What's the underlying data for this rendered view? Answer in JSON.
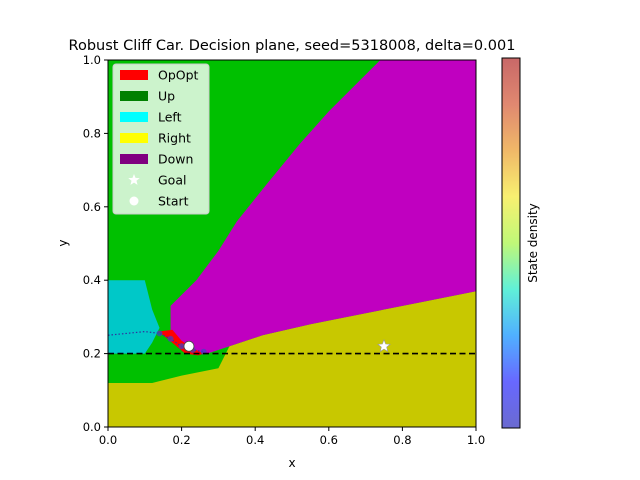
{
  "chart_data": {
    "type": "heatmap",
    "title": "Robust Cliff Car. Decision plane, seed=5318008, delta=0.001",
    "xlabel": "x",
    "ylabel": "y",
    "xlim": [
      0.0,
      1.0
    ],
    "ylim": [
      0.0,
      1.0
    ],
    "xticks": [
      "0.0",
      "0.2",
      "0.4",
      "0.6",
      "0.8",
      "1.0"
    ],
    "yticks": [
      "0.0",
      "0.2",
      "0.4",
      "0.6",
      "0.8",
      "1.0"
    ],
    "xtick_values": [
      0.0,
      0.2,
      0.4,
      0.6,
      0.8,
      1.0
    ],
    "ytick_values": [
      0.0,
      0.2,
      0.4,
      0.6,
      0.8,
      1.0
    ],
    "colors": {
      "up": "#00c000",
      "right": "#c8c800",
      "down": "#c000c0",
      "left": "#00c8c8",
      "opopt": "#ff0000"
    },
    "regions": [
      {
        "action": "Right",
        "color": "#c8c800",
        "polygon": [
          [
            0,
            0
          ],
          [
            1,
            0
          ],
          [
            1,
            0.37
          ],
          [
            0.85,
            0.34
          ],
          [
            0.7,
            0.31
          ],
          [
            0.55,
            0.28
          ],
          [
            0.42,
            0.25
          ],
          [
            0.33,
            0.22
          ],
          [
            0.3,
            0.16
          ],
          [
            0.2,
            0.14
          ],
          [
            0.12,
            0.12
          ],
          [
            0,
            0.12
          ]
        ]
      },
      {
        "action": "Down",
        "color": "#c000c0",
        "polygon": [
          [
            0.17,
            0.33
          ],
          [
            0.24,
            0.4
          ],
          [
            0.3,
            0.48
          ],
          [
            0.35,
            0.56
          ],
          [
            0.43,
            0.66
          ],
          [
            0.52,
            0.77
          ],
          [
            0.6,
            0.86
          ],
          [
            0.68,
            0.94
          ],
          [
            0.74,
            1.0
          ],
          [
            1,
            1.0
          ],
          [
            1,
            0.37
          ],
          [
            0.85,
            0.34
          ],
          [
            0.7,
            0.31
          ],
          [
            0.55,
            0.28
          ],
          [
            0.42,
            0.25
          ],
          [
            0.33,
            0.22
          ],
          [
            0.27,
            0.2
          ],
          [
            0.22,
            0.2
          ],
          [
            0.19,
            0.22
          ],
          [
            0.17,
            0.25
          ]
        ]
      },
      {
        "action": "Left",
        "color": "#00c8c8",
        "polygon": [
          [
            0,
            0.2
          ],
          [
            0.1,
            0.2
          ],
          [
            0.12,
            0.23
          ],
          [
            0.14,
            0.27
          ],
          [
            0.12,
            0.32
          ],
          [
            0.1,
            0.4
          ],
          [
            0,
            0.4
          ]
        ]
      },
      {
        "action": "OpOpt",
        "color": "#ff0000",
        "polygon": [
          [
            0.135,
            0.26
          ],
          [
            0.175,
            0.265
          ],
          [
            0.2,
            0.235
          ],
          [
            0.23,
            0.215
          ],
          [
            0.26,
            0.2
          ],
          [
            0.245,
            0.195
          ],
          [
            0.21,
            0.2
          ],
          [
            0.18,
            0.225
          ],
          [
            0.15,
            0.25
          ]
        ]
      }
    ],
    "density_trail": [
      [
        0.0,
        0.25
      ],
      [
        0.05,
        0.255
      ],
      [
        0.1,
        0.26
      ],
      [
        0.14,
        0.255
      ],
      [
        0.17,
        0.24
      ],
      [
        0.2,
        0.22
      ],
      [
        0.23,
        0.21
      ],
      [
        0.26,
        0.205
      ]
    ],
    "cliff_line_y": 0.2,
    "goal": {
      "x": 0.75,
      "y": 0.22
    },
    "start": {
      "x": 0.22,
      "y": 0.22
    },
    "legend": {
      "position": "upper-left",
      "entries": [
        {
          "label": "OpOpt",
          "color": "#ff0000",
          "kind": "patch"
        },
        {
          "label": "Up",
          "color": "#008000",
          "kind": "patch"
        },
        {
          "label": "Left",
          "color": "#00ffff",
          "kind": "patch"
        },
        {
          "label": "Right",
          "color": "#ffff00",
          "kind": "patch"
        },
        {
          "label": "Down",
          "color": "#800080",
          "kind": "patch"
        },
        {
          "label": "Goal",
          "color": "#ffffff",
          "kind": "star"
        },
        {
          "label": "Start",
          "color": "#ffffff",
          "kind": "circle"
        }
      ]
    },
    "colorbar": {
      "label": "State density",
      "colors": [
        "#6a6ad0",
        "#6868ff",
        "#50b0ff",
        "#60f0d8",
        "#c0f878",
        "#f8f070",
        "#f0b868",
        "#e08870",
        "#c86868"
      ]
    }
  }
}
